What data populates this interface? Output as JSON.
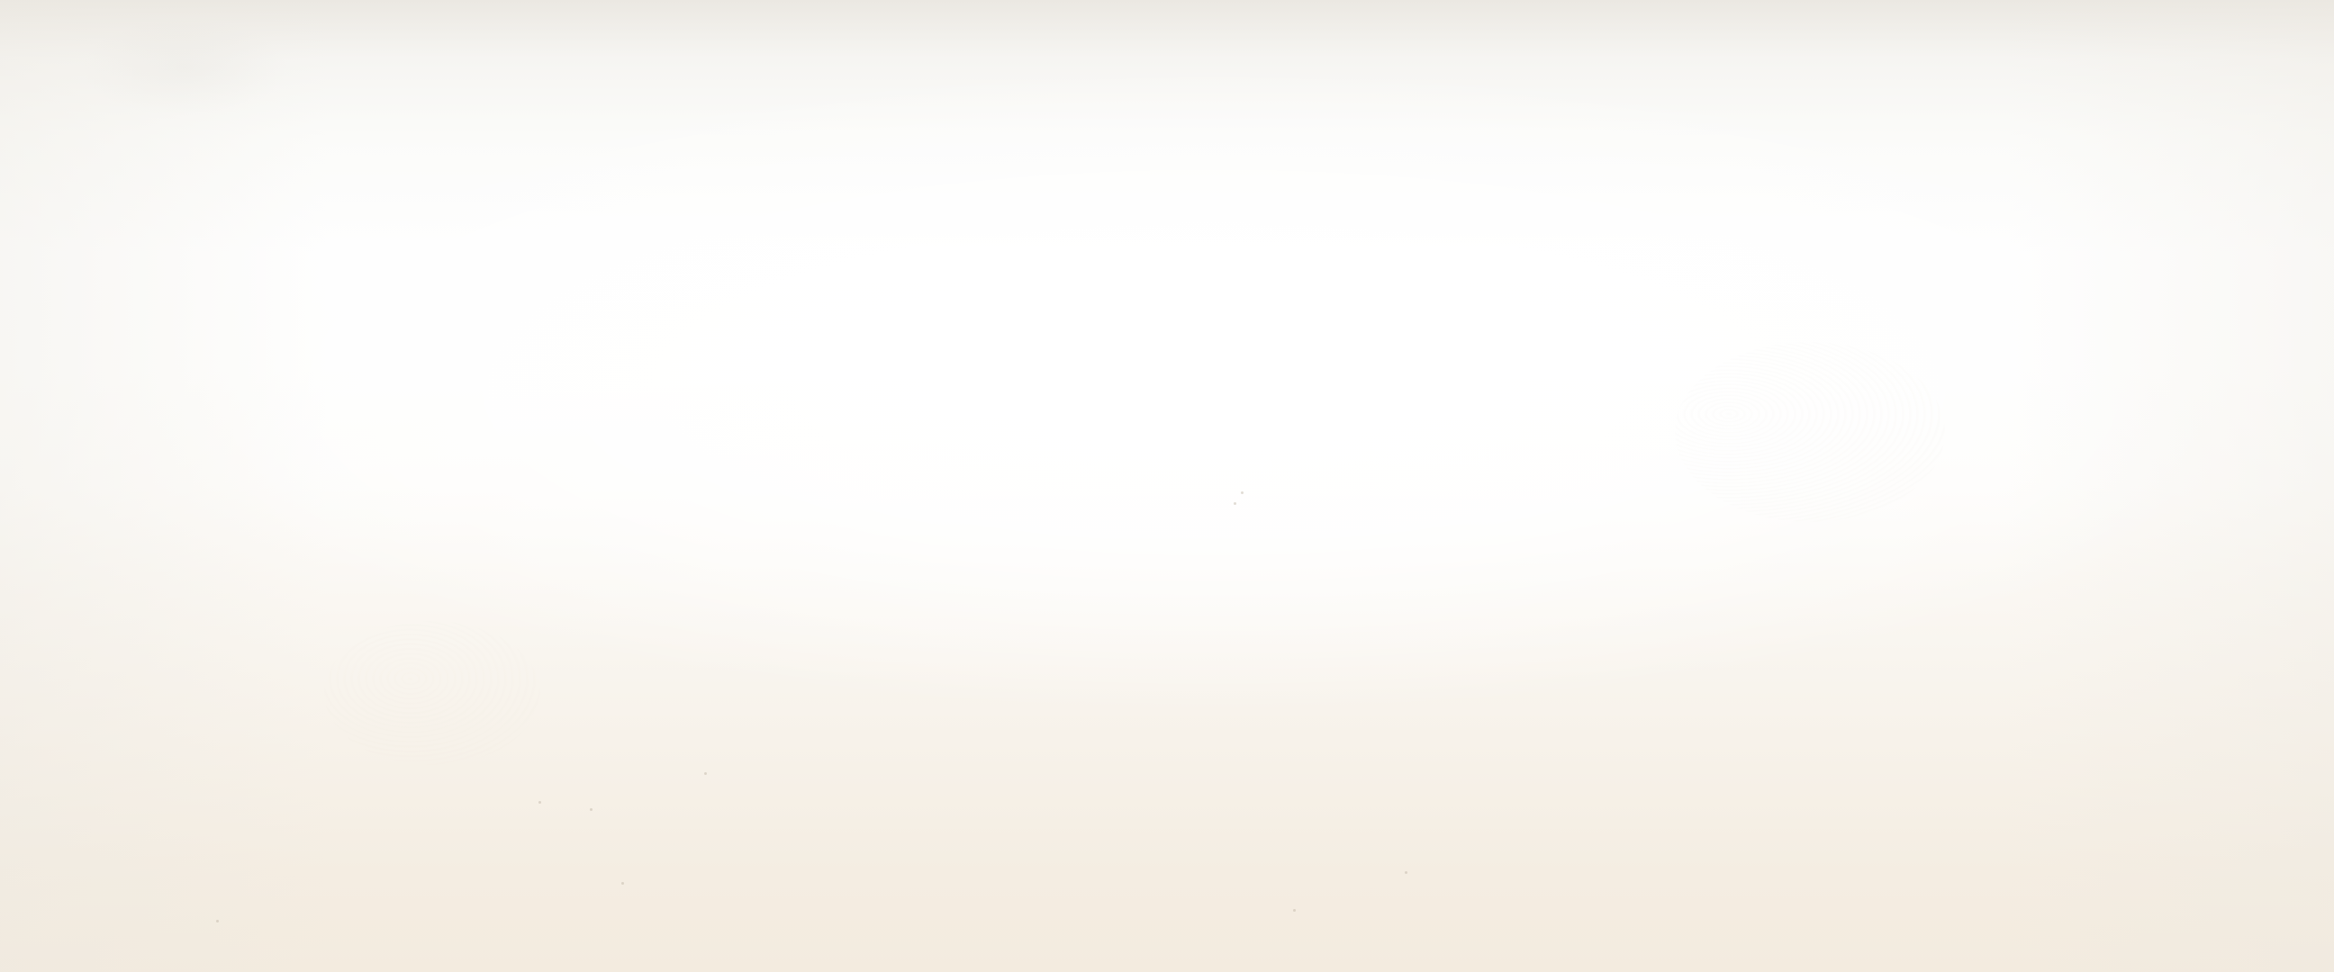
{
  "scene": {
    "description_colors": {
      "top": "#ebe8e2",
      "center": "#ffffff",
      "bottom": "#f3ebdf"
    }
  }
}
